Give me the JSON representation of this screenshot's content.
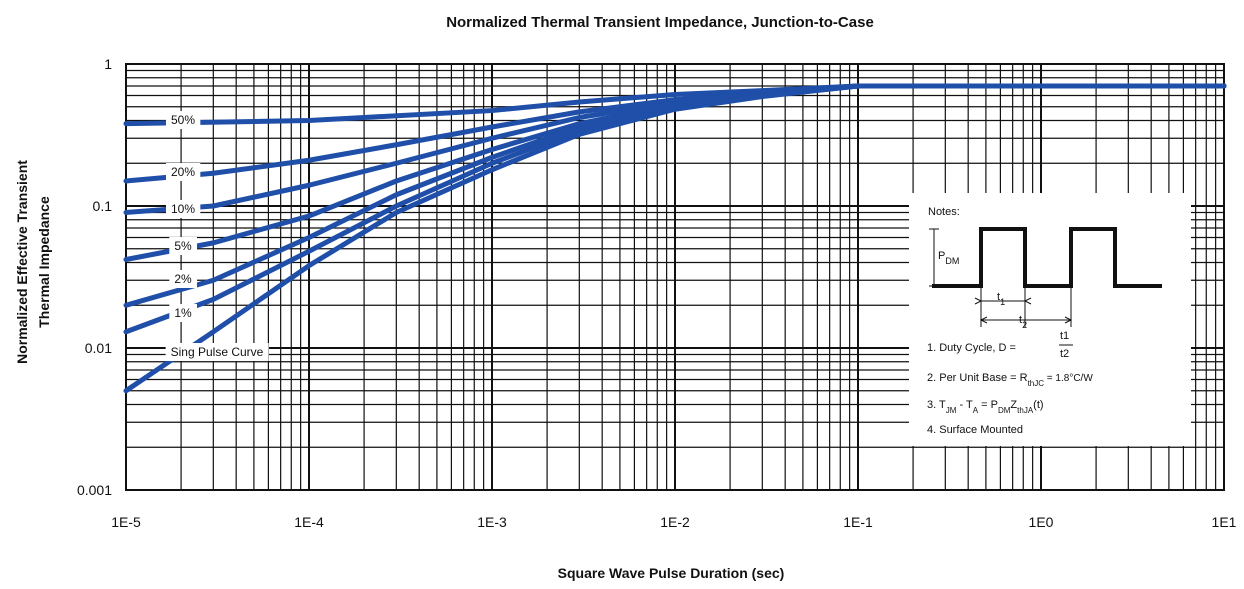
{
  "chart_data": {
    "type": "line",
    "title": "Normalized Thermal Transient Impedance, Junction-to-Case",
    "xlabel": "Square Wave Pulse Duration (sec)",
    "ylabel_line1": "Normalized Effective Transient",
    "ylabel_line2": "Thermal Impedance",
    "x_scale": "log",
    "y_scale": "log",
    "xlim": [
      1e-05,
      10
    ],
    "ylim": [
      0.001,
      1
    ],
    "x_ticks": [
      {
        "value": 1e-05,
        "label": "1E-5"
      },
      {
        "value": 0.0001,
        "label": "1E-4"
      },
      {
        "value": 0.001,
        "label": "1E-3"
      },
      {
        "value": 0.01,
        "label": "1E-2"
      },
      {
        "value": 0.1,
        "label": "1E-1"
      },
      {
        "value": 1,
        "label": "1E0"
      },
      {
        "value": 10,
        "label": "1E1"
      }
    ],
    "y_ticks": [
      {
        "value": 0.001,
        "label": "0.001"
      },
      {
        "value": 0.01,
        "label": "0.01"
      },
      {
        "value": 0.1,
        "label": "0.1"
      },
      {
        "value": 1,
        "label": "1"
      }
    ],
    "grid": true,
    "line_color": "#1f4fa8",
    "series": [
      {
        "name": "50%",
        "x": [
          1e-05,
          0.0001,
          0.001,
          0.003,
          0.01,
          0.03,
          0.1,
          1,
          10
        ],
        "y": [
          0.38,
          0.4,
          0.47,
          0.54,
          0.61,
          0.65,
          0.7,
          0.7,
          0.7
        ]
      },
      {
        "name": "20%",
        "x": [
          1e-05,
          3e-05,
          0.0001,
          0.0003,
          0.001,
          0.003,
          0.01,
          0.03,
          0.1,
          1,
          10
        ],
        "y": [
          0.15,
          0.17,
          0.21,
          0.27,
          0.36,
          0.46,
          0.56,
          0.63,
          0.7,
          0.7,
          0.7
        ]
      },
      {
        "name": "10%",
        "x": [
          1e-05,
          3e-05,
          0.0001,
          0.0003,
          0.001,
          0.003,
          0.01,
          0.03,
          0.1,
          1,
          10
        ],
        "y": [
          0.09,
          0.1,
          0.14,
          0.2,
          0.3,
          0.42,
          0.54,
          0.62,
          0.7,
          0.7,
          0.7
        ]
      },
      {
        "name": "5%",
        "x": [
          1e-05,
          3e-05,
          0.0001,
          0.0003,
          0.001,
          0.003,
          0.01,
          0.03,
          0.1,
          1,
          10
        ],
        "y": [
          0.042,
          0.055,
          0.085,
          0.15,
          0.25,
          0.38,
          0.52,
          0.61,
          0.7,
          0.7,
          0.7
        ]
      },
      {
        "name": "2%",
        "x": [
          1e-05,
          3e-05,
          0.0001,
          0.0003,
          0.001,
          0.003,
          0.01,
          0.03,
          0.1,
          1,
          10
        ],
        "y": [
          0.02,
          0.03,
          0.06,
          0.12,
          0.22,
          0.36,
          0.5,
          0.6,
          0.7,
          0.7,
          0.7
        ]
      },
      {
        "name": "1%",
        "x": [
          1e-05,
          3e-05,
          0.0001,
          0.0003,
          0.001,
          0.003,
          0.01,
          0.03,
          0.1,
          1,
          10
        ],
        "y": [
          0.013,
          0.022,
          0.048,
          0.1,
          0.2,
          0.34,
          0.49,
          0.6,
          0.7,
          0.7,
          0.7
        ]
      },
      {
        "name": "Sing Pulse Curve",
        "x": [
          1e-05,
          3e-05,
          0.0001,
          0.0003,
          0.001,
          0.003,
          0.01,
          0.03,
          0.1,
          1,
          10
        ],
        "y": [
          0.005,
          0.013,
          0.038,
          0.09,
          0.18,
          0.32,
          0.48,
          0.59,
          0.7,
          0.7,
          0.7
        ]
      }
    ],
    "notes": {
      "heading": "Notes:",
      "pdm": "P",
      "pdm_sub": "DM",
      "t1": "t",
      "t1_sub": "1",
      "t2": "t",
      "t2_sub": "2",
      "note1_prefix": "1. Duty Cycle, D = ",
      "note1_num": "t1",
      "note1_den": "t2",
      "note2": "2. Per Unit Base = R",
      "note2_sub": "thJC",
      "note2_suffix": " = 1.8°C/W",
      "note3_a": "3. T",
      "note3_a_sub": "JM",
      "note3_b": " - T",
      "note3_b_sub": "A",
      "note3_c": " = P",
      "note3_c_sub": "DM",
      "note3_d": "Z",
      "note3_d_sub": "thJA",
      "note3_e": "(t)",
      "note4": "4. Surface Mounted"
    }
  }
}
